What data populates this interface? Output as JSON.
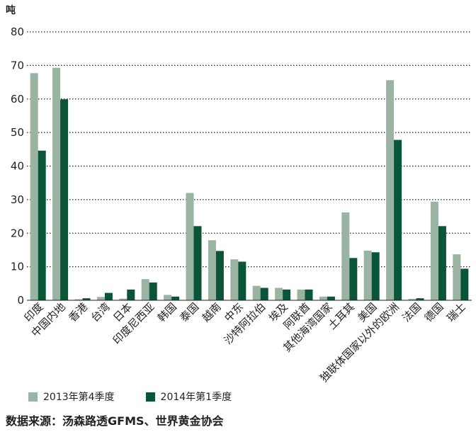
{
  "chart_data": {
    "type": "bar",
    "ylabel": "吨",
    "ylim": [
      0,
      80
    ],
    "yticks": [
      0,
      10,
      20,
      30,
      40,
      50,
      60,
      70,
      80
    ],
    "grid": "dotted horizontal",
    "legend_position": "bottom",
    "categories": [
      "印度",
      "中国内地",
      "香港",
      "台湾",
      "日本",
      "印度尼西亚",
      "韩国",
      "泰国",
      "越南",
      "中东",
      "沙特阿拉伯",
      "埃及",
      "阿联酋",
      "其他海湾国家",
      "土耳其",
      "美国",
      "独联体国家以外的欧洲",
      "法国",
      "德国",
      "瑞士"
    ],
    "series": [
      {
        "name": "2013年第4季度",
        "color": "#9bb3a2",
        "values": [
          67.7,
          69.3,
          0.3,
          1.0,
          0.5,
          6.3,
          1.6,
          32.0,
          17.9,
          12.2,
          4.3,
          3.7,
          3.2,
          1.1,
          26.2,
          14.8,
          65.6,
          0.4,
          29.4,
          13.7
        ]
      },
      {
        "name": "2014年第1季度",
        "color": "#0a5437",
        "values": [
          44.6,
          59.9,
          0.6,
          2.2,
          3.2,
          5.3,
          1.1,
          22.1,
          14.7,
          11.5,
          3.7,
          3.2,
          3.2,
          1.1,
          12.6,
          14.3,
          47.8,
          0.6,
          22.1,
          9.4
        ]
      }
    ]
  },
  "source_note": "数据来源：汤森路透GFMS、世界黄金协会"
}
